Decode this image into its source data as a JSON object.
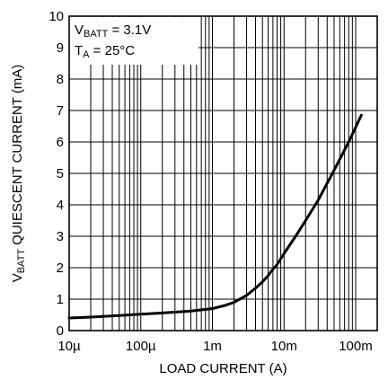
{
  "chart_data": {
    "type": "line",
    "xlabel": "LOAD CURRENT (A)",
    "ylabel": {
      "base": "V",
      "sub": "BATT",
      "rest": " QUIESCENT CURRENT (mA)"
    },
    "x_scale": "log",
    "xlim": [
      1e-05,
      0.2
    ],
    "ylim": [
      0,
      10
    ],
    "grid": true,
    "x_ticks": [
      {
        "value": 1e-05,
        "label": "10µ"
      },
      {
        "value": 0.0001,
        "label": "100µ"
      },
      {
        "value": 0.001,
        "label": "1m"
      },
      {
        "value": 0.01,
        "label": "10m"
      },
      {
        "value": 0.1,
        "label": "100m"
      }
    ],
    "y_ticks": [
      {
        "value": 0,
        "label": "0"
      },
      {
        "value": 1,
        "label": "1"
      },
      {
        "value": 2,
        "label": "2"
      },
      {
        "value": 3,
        "label": "3"
      },
      {
        "value": 4,
        "label": "4"
      },
      {
        "value": 5,
        "label": "5"
      },
      {
        "value": 6,
        "label": "6"
      },
      {
        "value": 7,
        "label": "7"
      },
      {
        "value": 8,
        "label": "8"
      },
      {
        "value": 9,
        "label": "9"
      },
      {
        "value": 10,
        "label": "10"
      }
    ],
    "annotations": [
      {
        "base": "V",
        "sub": "BATT",
        "rest": " = 3.1V"
      },
      {
        "base": "T",
        "sub": "A",
        "rest": " = 25°C"
      }
    ],
    "series": [
      {
        "color": "#000000",
        "x": [
          1e-05,
          2e-05,
          5e-05,
          0.0001,
          0.0002,
          0.0005,
          0.001,
          0.0015,
          0.002,
          0.003,
          0.004,
          0.005,
          0.006,
          0.007,
          0.008,
          0.01,
          0.015,
          0.02,
          0.03,
          0.05,
          0.08,
          0.12
        ],
        "y": [
          0.4,
          0.43,
          0.48,
          0.52,
          0.56,
          0.62,
          0.7,
          0.8,
          0.9,
          1.12,
          1.35,
          1.55,
          1.75,
          1.95,
          2.1,
          2.45,
          3.05,
          3.5,
          4.15,
          5.1,
          6.0,
          6.85
        ]
      }
    ]
  }
}
